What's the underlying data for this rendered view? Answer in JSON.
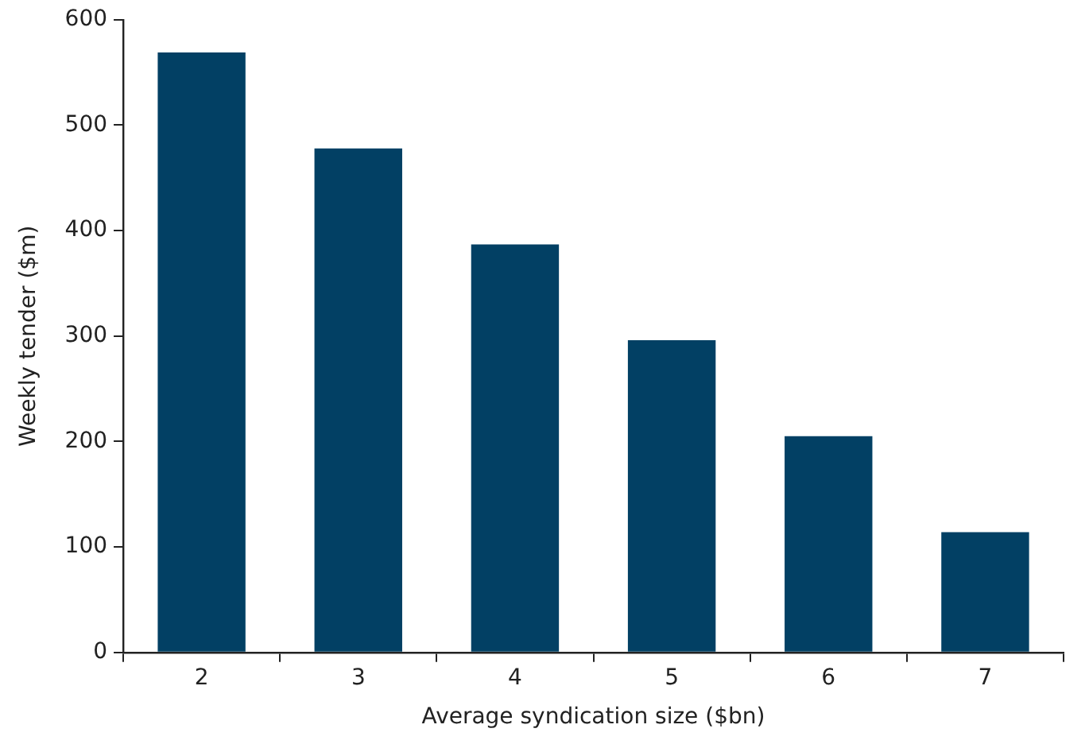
{
  "chart_data": {
    "type": "bar",
    "xlabel": "Average syndication size ($bn)",
    "ylabel": "Weekly tender ($m)",
    "categories": [
      "2",
      "3",
      "4",
      "5",
      "6",
      "7"
    ],
    "values": [
      569,
      478,
      387,
      296,
      205,
      114
    ],
    "color": "#024064",
    "ylim": [
      0,
      600
    ],
    "yticks": [
      0,
      100,
      200,
      300,
      400,
      500,
      600
    ],
    "grid": false,
    "legend": false
  }
}
